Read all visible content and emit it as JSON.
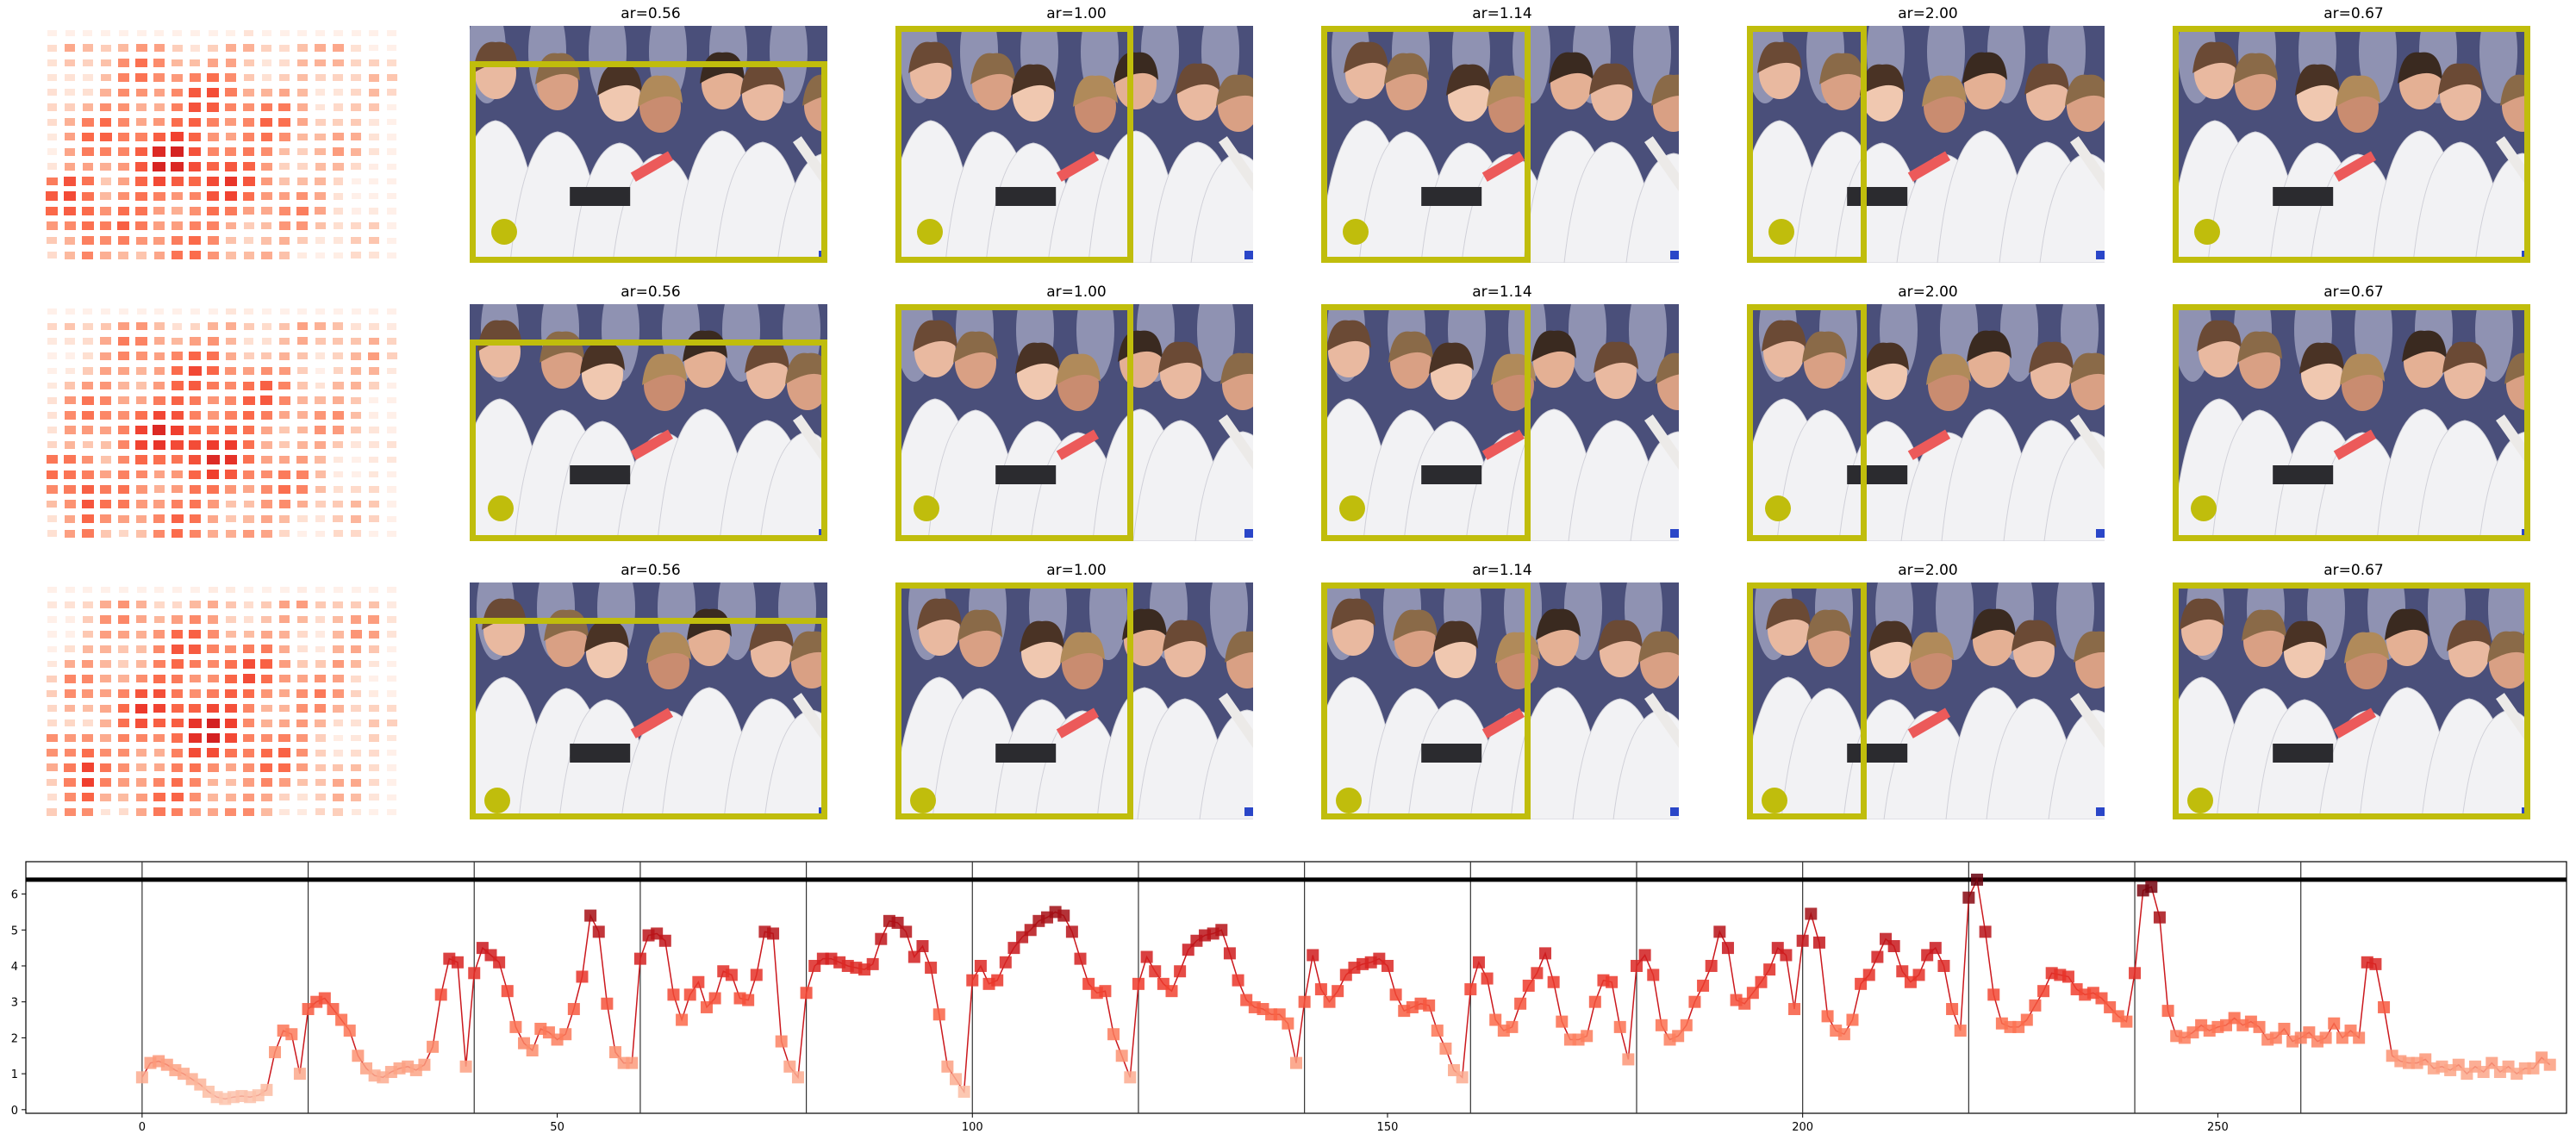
{
  "grid": {
    "rows": [
      {
        "titles": [
          "ar=0.56",
          "ar=1.00",
          "ar=1.14",
          "ar=2.00",
          "ar=0.67"
        ]
      },
      {
        "titles": [
          "ar=0.56",
          "ar=1.00",
          "ar=1.14",
          "ar=2.00",
          "ar=0.67"
        ]
      },
      {
        "titles": [
          "ar=0.56",
          "ar=1.00",
          "ar=1.14",
          "ar=2.00",
          "ar=0.67"
        ]
      }
    ],
    "crop_color": "#c0bd0c",
    "heatmap_colormap": "Reds"
  },
  "chart_data": {
    "type": "line",
    "title": "",
    "xlabel": "",
    "ylabel": "",
    "xlim": [
      -14,
      292
    ],
    "ylim": [
      -0.1,
      6.9
    ],
    "xticks": [
      0,
      50,
      100,
      150,
      200,
      250
    ],
    "yticks": [
      0,
      1,
      2,
      3,
      4,
      5,
      6
    ],
    "hline": 6.4,
    "vlines": [
      0,
      20,
      40,
      60,
      80,
      100,
      120,
      140,
      160,
      180,
      200,
      220,
      240,
      260
    ],
    "grid": false,
    "line_color": "#cb181d",
    "marker": "square",
    "values": [
      0.9,
      1.3,
      1.35,
      1.25,
      1.1,
      1.0,
      0.85,
      0.7,
      0.5,
      0.35,
      0.3,
      0.35,
      0.38,
      0.35,
      0.4,
      0.55,
      1.6,
      2.2,
      2.1,
      1.0,
      2.8,
      3.0,
      3.1,
      2.8,
      2.5,
      2.2,
      1.5,
      1.15,
      0.95,
      0.9,
      1.05,
      1.15,
      1.2,
      1.1,
      1.25,
      1.75,
      3.2,
      4.2,
      4.1,
      1.2,
      3.8,
      4.5,
      4.3,
      4.1,
      3.3,
      2.3,
      1.85,
      1.65,
      2.25,
      2.15,
      1.95,
      2.1,
      2.8,
      3.7,
      5.4,
      4.95,
      2.95,
      1.6,
      1.3,
      1.3,
      4.2,
      4.85,
      4.9,
      4.7,
      3.2,
      2.5,
      3.2,
      3.55,
      2.85,
      3.1,
      3.85,
      3.75,
      3.1,
      3.05,
      3.75,
      4.95,
      4.9,
      1.9,
      1.2,
      0.9,
      3.25,
      4.0,
      4.2,
      4.2,
      4.1,
      4.0,
      3.95,
      3.9,
      4.05,
      4.75,
      5.25,
      5.2,
      4.95,
      4.25,
      4.55,
      3.95,
      2.65,
      1.2,
      0.85,
      0.5,
      3.6,
      4.0,
      3.5,
      3.6,
      4.1,
      4.5,
      4.8,
      5.0,
      5.25,
      5.35,
      5.5,
      5.4,
      4.95,
      4.2,
      3.5,
      3.25,
      3.3,
      2.1,
      1.5,
      0.9,
      3.5,
      4.25,
      3.85,
      3.5,
      3.3,
      3.85,
      4.45,
      4.7,
      4.85,
      4.9,
      5.0,
      4.35,
      3.6,
      3.05,
      2.85,
      2.8,
      2.65,
      2.65,
      2.4,
      1.3,
      3.0,
      4.3,
      3.35,
      3.0,
      3.3,
      3.75,
      3.95,
      4.05,
      4.1,
      4.2,
      4.0,
      3.2,
      2.75,
      2.85,
      2.95,
      2.9,
      2.2,
      1.7,
      1.1,
      0.9,
      3.35,
      4.1,
      3.65,
      2.5,
      2.2,
      2.3,
      2.95,
      3.45,
      3.8,
      4.35,
      3.55,
      2.45,
      1.95,
      1.95,
      2.05,
      3.0,
      3.6,
      3.55,
      2.3,
      1.4,
      4.0,
      4.3,
      3.75,
      2.35,
      1.95,
      2.05,
      2.35,
      3.0,
      3.45,
      4.0,
      4.95,
      4.5,
      3.05,
      2.95,
      3.25,
      3.55,
      3.9,
      4.5,
      4.3,
      2.8,
      4.7,
      5.45,
      4.65,
      2.6,
      2.2,
      2.1,
      2.5,
      3.5,
      3.75,
      4.25,
      4.75,
      4.55,
      3.85,
      3.55,
      3.75,
      4.3,
      4.5,
      4.0,
      2.8,
      2.2,
      5.9,
      6.4,
      4.95,
      3.2,
      2.4,
      2.3,
      2.3,
      2.5,
      2.9,
      3.3,
      3.8,
      3.75,
      3.7,
      3.35,
      3.2,
      3.25,
      3.1,
      2.85,
      2.6,
      2.45,
      3.8,
      6.1,
      6.2,
      5.35,
      2.75,
      2.05,
      2.0,
      2.15,
      2.35,
      2.2,
      2.3,
      2.35,
      2.55,
      2.35,
      2.45,
      2.3,
      1.95,
      2.0,
      2.25,
      1.9,
      2.0,
      2.15,
      1.9,
      2.0,
      2.4,
      2.0,
      2.2,
      2.0,
      4.1,
      4.05,
      2.85,
      1.5,
      1.35,
      1.3,
      1.3,
      1.4,
      1.15,
      1.2,
      1.1,
      1.25,
      1.0,
      1.2,
      1.05,
      1.3,
      1.05,
      1.2,
      1.0,
      1.15,
      1.15,
      1.45,
      1.25
    ]
  }
}
